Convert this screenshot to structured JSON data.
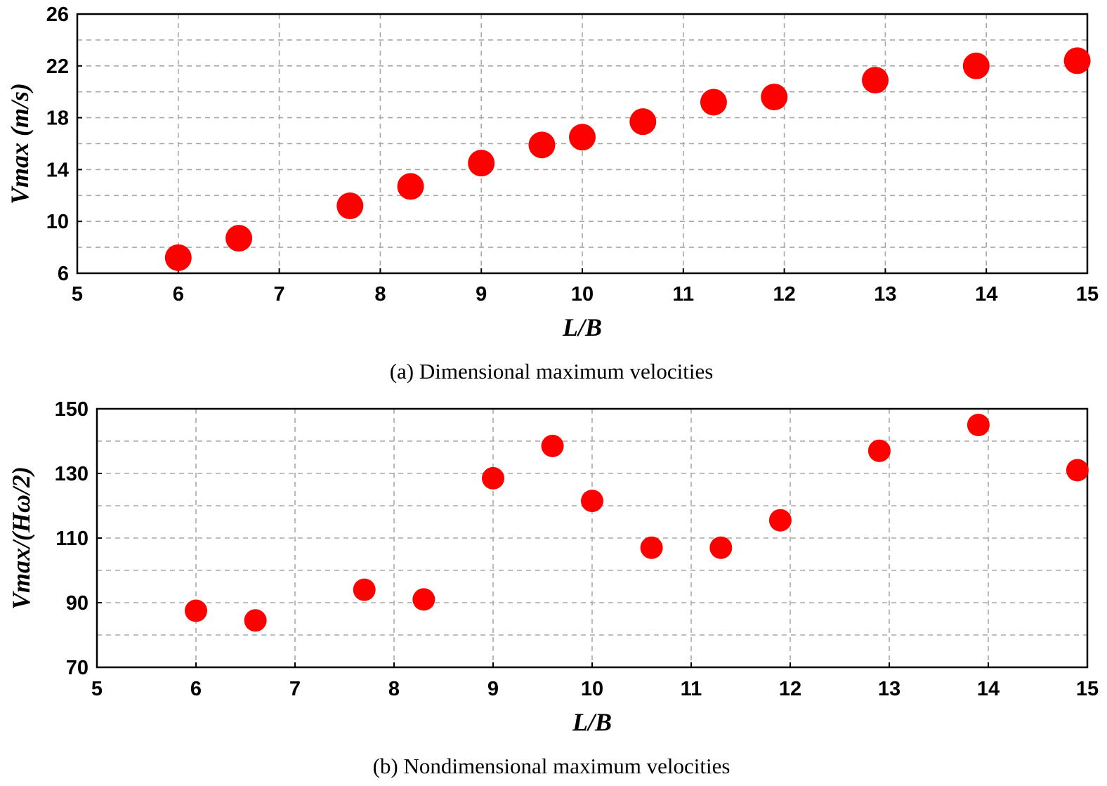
{
  "chart_data": [
    {
      "type": "scatter",
      "title": "",
      "caption": "(a) Dimensional maximum velocities",
      "xlabel": "L/B",
      "ylabel": "Vmax (m/s)",
      "xlim": [
        5,
        15
      ],
      "ylim": [
        6,
        26
      ],
      "xticks": [
        "5",
        "6",
        "7",
        "8",
        "9",
        "10",
        "11",
        "12",
        "13",
        "14",
        "15"
      ],
      "yticks": [
        "6",
        "10",
        "14",
        "18",
        "22",
        "26"
      ],
      "grid": true,
      "marker_color": "#ff0000",
      "series": [
        {
          "name": "Vmax",
          "x": [
            6.0,
            6.6,
            7.7,
            8.3,
            9.0,
            9.6,
            10.0,
            10.6,
            11.3,
            11.9,
            12.9,
            13.9,
            14.9
          ],
          "y": [
            7.2,
            8.7,
            11.2,
            12.7,
            14.5,
            15.9,
            16.5,
            17.7,
            19.2,
            19.6,
            20.9,
            22.0,
            22.4
          ]
        }
      ]
    },
    {
      "type": "scatter",
      "title": "",
      "caption": "(b) Nondimensional maximum velocities",
      "xlabel": "L/B",
      "ylabel": "Vmax/(Hω/2)",
      "xlim": [
        5,
        15
      ],
      "ylim": [
        70,
        150
      ],
      "xticks": [
        "5",
        "6",
        "7",
        "8",
        "9",
        "10",
        "11",
        "12",
        "13",
        "14",
        "15"
      ],
      "yticks": [
        "70",
        "90",
        "110",
        "130",
        "150"
      ],
      "grid": true,
      "marker_color": "#ff0000",
      "series": [
        {
          "name": "Vmax/(Hω/2)",
          "x": [
            6.0,
            6.6,
            7.7,
            8.3,
            9.0,
            9.6,
            10.0,
            10.6,
            11.3,
            11.9,
            12.9,
            13.9,
            14.9
          ],
          "y": [
            87.5,
            84.5,
            94.0,
            91.0,
            128.5,
            138.5,
            121.5,
            107.0,
            107.0,
            115.5,
            137.0,
            145.0,
            131.0
          ]
        }
      ]
    }
  ]
}
